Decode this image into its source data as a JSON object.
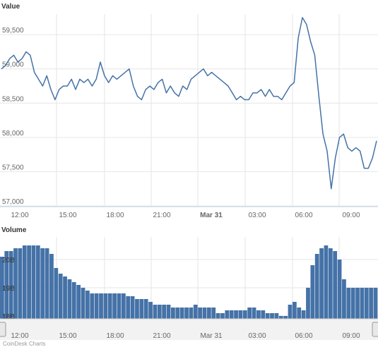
{
  "chart_data": [
    {
      "type": "line",
      "title": "Value",
      "ylim": [
        57000,
        59800
      ],
      "yticks": [
        57000,
        57500,
        58000,
        58500,
        59000,
        59500
      ],
      "yticklabels": [
        "57,000",
        "57,500",
        "58,000",
        "58,500",
        "59,000",
        "59,500"
      ],
      "xticklabels": [
        "12:00",
        "15:00",
        "18:00",
        "21:00",
        "Mar 31",
        "03:00",
        "06:00",
        "09:00"
      ],
      "grid": true,
      "series": [
        {
          "color": "#4572a7",
          "points": [
            [
              "12:00",
              59000
            ],
            [
              "12:15",
              59050
            ],
            [
              "12:30",
              59150
            ],
            [
              "12:45",
              59200
            ],
            [
              "13:00",
              59100
            ],
            [
              "13:15",
              59150
            ],
            [
              "13:30",
              59250
            ],
            [
              "13:45",
              59200
            ],
            [
              "14:00",
              58950
            ],
            [
              "14:15",
              58850
            ],
            [
              "14:30",
              58750
            ],
            [
              "14:45",
              58900
            ],
            [
              "15:00",
              58700
            ],
            [
              "15:15",
              58550
            ],
            [
              "15:30",
              58700
            ],
            [
              "15:45",
              58750
            ],
            [
              "16:00",
              58750
            ],
            [
              "16:15",
              58850
            ],
            [
              "16:30",
              58700
            ],
            [
              "16:45",
              58850
            ],
            [
              "17:00",
              58800
            ],
            [
              "17:15",
              58850
            ],
            [
              "17:30",
              58750
            ],
            [
              "17:45",
              58850
            ],
            [
              "18:00",
              59100
            ],
            [
              "18:15",
              58900
            ],
            [
              "18:30",
              58800
            ],
            [
              "18:45",
              58900
            ],
            [
              "19:00",
              58850
            ],
            [
              "19:15",
              58900
            ],
            [
              "19:30",
              58950
            ],
            [
              "19:45",
              59000
            ],
            [
              "20:00",
              58750
            ],
            [
              "20:15",
              58600
            ],
            [
              "20:30",
              58550
            ],
            [
              "20:45",
              58700
            ],
            [
              "21:00",
              58750
            ],
            [
              "21:15",
              58700
            ],
            [
              "21:30",
              58800
            ],
            [
              "21:45",
              58850
            ],
            [
              "22:00",
              58650
            ],
            [
              "22:15",
              58750
            ],
            [
              "22:30",
              58650
            ],
            [
              "22:45",
              58600
            ],
            [
              "23:00",
              58750
            ],
            [
              "23:15",
              58700
            ],
            [
              "23:30",
              58850
            ],
            [
              "23:45",
              58900
            ],
            [
              "00:00",
              58950
            ],
            [
              "00:15",
              59000
            ],
            [
              "00:30",
              58900
            ],
            [
              "00:45",
              58950
            ],
            [
              "01:00",
              58900
            ],
            [
              "01:15",
              58850
            ],
            [
              "01:30",
              58800
            ],
            [
              "01:45",
              58750
            ],
            [
              "02:00",
              58650
            ],
            [
              "02:15",
              58550
            ],
            [
              "02:30",
              58600
            ],
            [
              "02:45",
              58550
            ],
            [
              "03:00",
              58550
            ],
            [
              "03:15",
              58650
            ],
            [
              "03:30",
              58650
            ],
            [
              "03:45",
              58700
            ],
            [
              "04:00",
              58600
            ],
            [
              "04:15",
              58700
            ],
            [
              "04:30",
              58600
            ],
            [
              "04:45",
              58600
            ],
            [
              "05:00",
              58550
            ],
            [
              "05:15",
              58650
            ],
            [
              "05:30",
              58750
            ],
            [
              "05:45",
              58800
            ],
            [
              "06:00",
              59450
            ],
            [
              "06:15",
              59750
            ],
            [
              "06:30",
              59650
            ],
            [
              "06:45",
              59400
            ],
            [
              "07:00",
              59200
            ],
            [
              "07:15",
              58600
            ],
            [
              "07:30",
              58050
            ],
            [
              "07:45",
              57800
            ],
            [
              "08:00",
              57250
            ],
            [
              "08:15",
              57700
            ],
            [
              "08:30",
              58000
            ],
            [
              "08:45",
              58050
            ],
            [
              "09:00",
              57850
            ],
            [
              "09:15",
              57800
            ],
            [
              "09:30",
              57850
            ],
            [
              "09:45",
              57800
            ],
            [
              "10:00",
              57550
            ],
            [
              "10:15",
              57550
            ],
            [
              "10:30",
              57700
            ],
            [
              "10:45",
              57950
            ]
          ]
        }
      ]
    },
    {
      "type": "area",
      "title": "Volume",
      "ylim": [
        17.9,
        20.8
      ],
      "yticks": [
        18,
        19,
        20
      ],
      "yticklabels": [
        "18B",
        "19B",
        "20B"
      ],
      "xticklabels": [
        "12:00",
        "15:00",
        "18:00",
        "21:00",
        "Mar 31",
        "03:00",
        "06:00",
        "09:00"
      ],
      "grid": true,
      "series": [
        {
          "color": "#4572a7",
          "unit": "B",
          "values": [
            20.1,
            20.3,
            20.3,
            20.4,
            20.4,
            20.5,
            20.5,
            20.5,
            20.5,
            20.4,
            20.4,
            20.2,
            19.7,
            19.5,
            19.4,
            19.3,
            19.2,
            19.1,
            19.0,
            18.9,
            18.8,
            18.8,
            18.8,
            18.8,
            18.8,
            18.8,
            18.8,
            18.8,
            18.7,
            18.7,
            18.6,
            18.6,
            18.6,
            18.5,
            18.4,
            18.4,
            18.4,
            18.4,
            18.3,
            18.3,
            18.3,
            18.3,
            18.3,
            18.4,
            18.3,
            18.3,
            18.3,
            18.3,
            18.1,
            18.1,
            18.2,
            18.2,
            18.2,
            18.2,
            18.2,
            18.3,
            18.3,
            18.2,
            18.2,
            18.1,
            18.1,
            18.1,
            18.0,
            18.0,
            18.4,
            18.5,
            18.3,
            18.2,
            19.0,
            19.8,
            20.2,
            20.4,
            20.5,
            20.4,
            20.3,
            20.0,
            19.3,
            19.0,
            19.0,
            19.0,
            19.0,
            19.0,
            19.0,
            19.0
          ]
        }
      ]
    }
  ],
  "navigator": {
    "start_handle": "|||",
    "end_handle": "|||"
  },
  "footer": {
    "credit": "CoinDesk Charts"
  }
}
